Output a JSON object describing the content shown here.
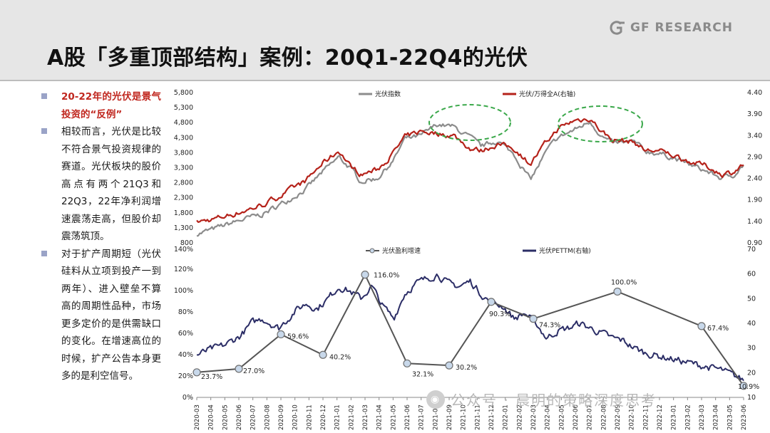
{
  "header": {
    "logo_text": "GF RESEARCH",
    "logo_icon": "gf-logo-icon",
    "title": "A股「多重顶部结构」案例：20Q1-22Q4的光伏"
  },
  "left_panel": {
    "bullets": [
      {
        "text": "20-22年的光伏是景气投资的“反例”",
        "highlight": true
      },
      {
        "text": "相较而言，光伏是比较不符合景气投资规律的赛道。光伏板块的股价高点有两个21Q3和22Q3，22年净利润增速震荡走高，但股价却震荡筑顶。",
        "highlight": false
      },
      {
        "text": "对于扩产周期短（光伏硅料从立项到投产一到两年）、进入壁垒不算高的周期性品种，市场更多定价的是供需缺口的变化。在增速高位的时候，扩产公告本身更多的是利空信号。",
        "highlight": false
      }
    ]
  },
  "colors": {
    "index_line": "#8c8c8c",
    "ratio_line": "#b5221a",
    "growth_line": "#555555",
    "growth_marker_fill": "#c8d8ea",
    "pe_line": "#2b2d66",
    "ellipse": "#3aa84a"
  },
  "watermark": {
    "text": "公众号 · 晨明的策略深度思考"
  },
  "chart_data": [
    {
      "type": "line",
      "series": [
        {
          "name": "光伏指数",
          "axis": "left"
        },
        {
          "name": "光伏/万得全A(右轴)",
          "axis": "right"
        }
      ],
      "ylim": [
        800,
        5800
      ],
      "y_ticks": [
        "5,800",
        "5,300",
        "4,800",
        "4,300",
        "3,800",
        "3,300",
        "2,800",
        "2,300",
        "1,800",
        "1,300",
        "800"
      ],
      "y2lim": [
        0.9,
        4.4
      ],
      "y2_ticks": [
        "4.40",
        "3.90",
        "3.40",
        "2.90",
        "2.40",
        "1.90",
        "1.40",
        "0.90"
      ],
      "highlights": [
        "2021Q3 top",
        "2022Q3 top"
      ],
      "approx_path": {
        "index_x": [
          0,
          0.03,
          0.07,
          0.12,
          0.16,
          0.2,
          0.23,
          0.26,
          0.28,
          0.3,
          0.33,
          0.36,
          0.38,
          0.41,
          0.44,
          0.47,
          0.5,
          0.52,
          0.55,
          0.58,
          0.61,
          0.64,
          0.66,
          0.69,
          0.72,
          0.74,
          0.76,
          0.8,
          0.82,
          0.84,
          0.87,
          0.9,
          0.93,
          0.96,
          0.98,
          1.0
        ],
        "index_y": [
          1100,
          1250,
          1500,
          1750,
          2150,
          2600,
          3150,
          3650,
          3300,
          2850,
          2950,
          3550,
          4250,
          4350,
          4750,
          4650,
          4300,
          4000,
          4200,
          3750,
          2900,
          3850,
          4300,
          4550,
          4850,
          4350,
          4100,
          4150,
          3850,
          3800,
          3650,
          3400,
          3200,
          2950,
          3050,
          3400
        ],
        "ratio_y": [
          1.38,
          1.45,
          1.58,
          1.78,
          2.05,
          2.35,
          2.75,
          3.05,
          2.7,
          2.5,
          2.6,
          3.0,
          3.35,
          3.5,
          3.45,
          3.4,
          3.1,
          3.05,
          3.2,
          3.1,
          2.75,
          3.25,
          3.55,
          3.75,
          3.8,
          3.5,
          3.3,
          3.25,
          3.05,
          3.05,
          2.95,
          2.8,
          2.7,
          2.5,
          2.55,
          2.72
        ]
      }
    },
    {
      "type": "line",
      "categories": [
        "2020-03",
        "2020-04",
        "2020-05",
        "2020-06",
        "2020-07",
        "2020-08",
        "2020-09",
        "2020-10",
        "2020-11",
        "2020-12",
        "2021-01",
        "2021-02",
        "2021-03",
        "2021-04",
        "2021-05",
        "2021-06",
        "2021-07",
        "2021-08",
        "2021-09",
        "2021-10",
        "2021-11",
        "2021-12",
        "2022-01",
        "2022-02",
        "2022-03",
        "2022-04",
        "2022-05",
        "2022-06",
        "2022-07",
        "2022-08",
        "2022-09",
        "2022-10",
        "2022-11",
        "2022-12",
        "2023-01",
        "2023-02",
        "2023-03",
        "2023-04",
        "2023-05",
        "2023-06"
      ],
      "series": [
        {
          "name": "光伏盈利增速",
          "axis": "left",
          "points": [
            {
              "x": "2020-03",
              "y": 23.7,
              "label": "23.7%"
            },
            {
              "x": "2020-06",
              "y": 27.0,
              "label": "27.0%"
            },
            {
              "x": "2020-09",
              "y": 59.6,
              "label": "59.6%"
            },
            {
              "x": "2020-12",
              "y": 40.2,
              "label": "40.2%"
            },
            {
              "x": "2021-03",
              "y": 116.0,
              "label": "116.0%"
            },
            {
              "x": "2021-06",
              "y": 32.1,
              "label": "32.1%"
            },
            {
              "x": "2021-09",
              "y": 30.2,
              "label": "30.2%"
            },
            {
              "x": "2021-12",
              "y": 90.3,
              "label": "90.3%"
            },
            {
              "x": "2022-03",
              "y": 74.3,
              "label": "74.3%"
            },
            {
              "x": "2022-09",
              "y": 100.0,
              "label": "100.0%"
            },
            {
              "x": "2023-03",
              "y": 67.4,
              "label": "67.4%"
            },
            {
              "x": "2023-06",
              "y": 10.9,
              "label": "10.9%"
            }
          ]
        },
        {
          "name": "光伏PETTM(右轴)",
          "axis": "right",
          "approx_path": {
            "x": [
              0,
              0.02,
              0.05,
              0.08,
              0.1,
              0.12,
              0.15,
              0.18,
              0.2,
              0.22,
              0.24,
              0.26,
              0.28,
              0.3,
              0.32,
              0.34,
              0.36,
              0.38,
              0.4,
              0.42,
              0.44,
              0.46,
              0.48,
              0.5,
              0.52,
              0.54,
              0.56,
              0.58,
              0.6,
              0.62,
              0.64,
              0.66,
              0.68,
              0.7,
              0.72,
              0.74,
              0.76,
              0.78,
              0.8,
              0.82,
              0.84,
              0.86,
              0.88,
              0.9,
              0.92,
              0.94,
              0.96,
              0.98,
              1.0
            ],
            "y": [
              27,
              29,
              31,
              35,
              40,
              42,
              38,
              45,
              48,
              46,
              50,
              55,
              53,
              50,
              55,
              47,
              42,
              52,
              56,
              58,
              60,
              56,
              55,
              57,
              52,
              48,
              47,
              42,
              44,
              40,
              34,
              37,
              38,
              40,
              38,
              36,
              34,
              33,
              30,
              28,
              27,
              26,
              25,
              24,
              23,
              22,
              21,
              19,
              17
            ]
          }
        }
      ],
      "ylim": [
        0,
        140
      ],
      "y_ticks": [
        "140%",
        "120%",
        "100%",
        "80%",
        "60%",
        "40%",
        "20%",
        "0%"
      ],
      "y2lim": [
        10,
        70
      ],
      "y2_ticks": [
        "70",
        "60",
        "50",
        "40",
        "30",
        "20",
        "10"
      ]
    }
  ]
}
